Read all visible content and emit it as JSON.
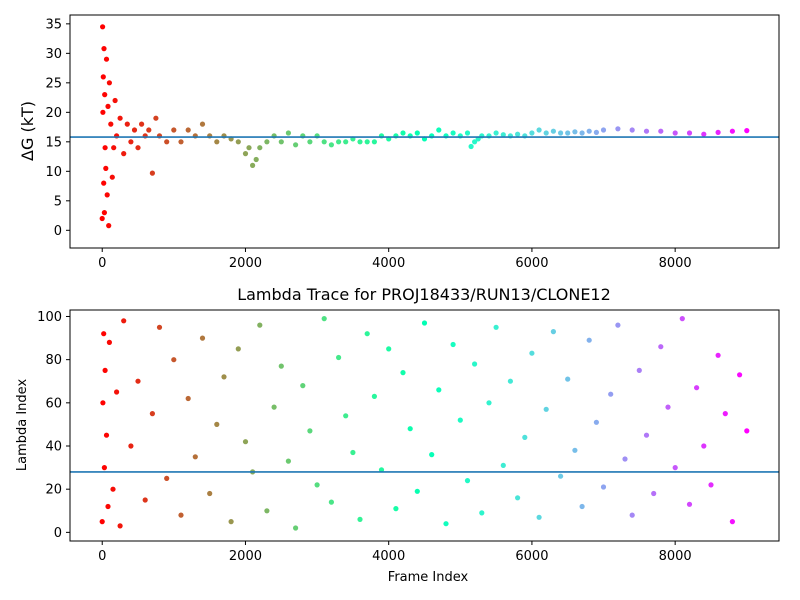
{
  "chart_data": [
    {
      "type": "scatter",
      "title": "",
      "xlabel": "",
      "ylabel": "ΔG (kT)",
      "xlim": [
        -450,
        9450
      ],
      "ylim": [
        -3,
        36.5
      ],
      "xticks": [
        0,
        2000,
        4000,
        6000,
        8000
      ],
      "yticks": [
        0,
        5,
        10,
        15,
        20,
        25,
        30,
        35
      ],
      "grid": false,
      "colormap": "rainbow (reversed along frame index)",
      "reference_line": {
        "y": 15.8,
        "color": "#1f77b4"
      },
      "series": [
        {
          "x": [
            0,
            5,
            10,
            15,
            20,
            25,
            30,
            35,
            40,
            50,
            60,
            70,
            80,
            90,
            100,
            120,
            140,
            160,
            180,
            200,
            250,
            300,
            350,
            400,
            450,
            500,
            550,
            600,
            650,
            700,
            750,
            800,
            900,
            1000,
            1100,
            1200,
            1300,
            1400,
            1500,
            1600,
            1700,
            1800,
            1900,
            2000,
            2050,
            2100,
            2150,
            2200,
            2300,
            2400,
            2500,
            2600,
            2700,
            2800,
            2900,
            3000,
            3100,
            3200,
            3300,
            3400,
            3500,
            3600,
            3700,
            3800,
            3900,
            4000,
            4100,
            4200,
            4300,
            4400,
            4500,
            4600,
            4700,
            4800,
            4900,
            5000,
            5100,
            5150,
            5200,
            5250,
            5300,
            5400,
            5500,
            5600,
            5700,
            5800,
            5900,
            6000,
            6100,
            6200,
            6300,
            6400,
            6500,
            6600,
            6700,
            6800,
            6900,
            7000,
            7200,
            7400,
            7600,
            7800,
            8000,
            8200,
            8400,
            8600,
            8800,
            9000
          ],
          "y": [
            2,
            34.5,
            20,
            26,
            8,
            30.8,
            3,
            23,
            14,
            10.5,
            29,
            6,
            21,
            0.8,
            25,
            18,
            9,
            14,
            22,
            16,
            19,
            13,
            18,
            15,
            17,
            14,
            18,
            16,
            17,
            9.7,
            19,
            16,
            15,
            17,
            15,
            17,
            16,
            18,
            16,
            15,
            16,
            15.5,
            15,
            13,
            14,
            11,
            12,
            14,
            15,
            16,
            15,
            16.5,
            14.5,
            16,
            15,
            16,
            15,
            14.5,
            15,
            15,
            15.5,
            15,
            15,
            15,
            16,
            15.5,
            16,
            16.5,
            16,
            16.5,
            15.5,
            16,
            17,
            16,
            16.5,
            16,
            16.5,
            14.2,
            15,
            15.5,
            16,
            16,
            16.5,
            16.2,
            16,
            16.3,
            16,
            16.5,
            17,
            16.5,
            16.8,
            16.5,
            16.5,
            16.7,
            16.5,
            16.8,
            16.6,
            17,
            17.2,
            17,
            16.8,
            16.8,
            16.5,
            16.5,
            16.3,
            16.6,
            16.8,
            16.9
          ]
        }
      ]
    },
    {
      "type": "scatter",
      "title": "Lambda Trace for PROJ18433/RUN13/CLONE12",
      "xlabel": "Frame Index",
      "ylabel": "Lambda Index",
      "xlim": [
        -450,
        9450
      ],
      "ylim": [
        -4,
        103
      ],
      "xticks": [
        0,
        2000,
        4000,
        6000,
        8000
      ],
      "yticks": [
        0,
        20,
        40,
        60,
        80,
        100
      ],
      "grid": false,
      "colormap": "rainbow (reversed along frame index)",
      "reference_line": {
        "y": 28,
        "color": "#1f77b4"
      },
      "series": [
        {
          "x": [
            0,
            10,
            20,
            30,
            40,
            60,
            80,
            100,
            150,
            200,
            250,
            300,
            400,
            500,
            600,
            700,
            800,
            900,
            1000,
            1100,
            1200,
            1300,
            1400,
            1500,
            1600,
            1700,
            1800,
            1900,
            2000,
            2100,
            2200,
            2300,
            2400,
            2500,
            2600,
            2700,
            2800,
            2900,
            3000,
            3100,
            3200,
            3300,
            3400,
            3500,
            3600,
            3700,
            3800,
            3900,
            4000,
            4100,
            4200,
            4300,
            4400,
            4500,
            4600,
            4700,
            4800,
            4900,
            5000,
            5100,
            5200,
            5300,
            5400,
            5500,
            5600,
            5700,
            5800,
            5900,
            6000,
            6100,
            6200,
            6300,
            6400,
            6500,
            6600,
            6700,
            6800,
            6900,
            7000,
            7100,
            7200,
            7300,
            7400,
            7500,
            7600,
            7700,
            7800,
            7900,
            8000,
            8100,
            8200,
            8300,
            8400,
            8500,
            8600,
            8700,
            8800,
            8900,
            9000
          ],
          "y": [
            5,
            60,
            92,
            30,
            75,
            45,
            12,
            88,
            20,
            65,
            3,
            98,
            40,
            70,
            15,
            55,
            95,
            25,
            80,
            8,
            62,
            35,
            90,
            18,
            50,
            72,
            5,
            85,
            42,
            28,
            96,
            10,
            58,
            77,
            33,
            2,
            68,
            47,
            22,
            99,
            14,
            81,
            54,
            37,
            6,
            92,
            63,
            29,
            85,
            11,
            74,
            48,
            19,
            97,
            36,
            66,
            4,
            87,
            52,
            24,
            78,
            9,
            60,
            95,
            31,
            70,
            16,
            44,
            83,
            7,
            57,
            93,
            26,
            71,
            38,
            12,
            89,
            51,
            21,
            64,
            96,
            34,
            8,
            75,
            45,
            18,
            86,
            58,
            30,
            99,
            13,
            67,
            40,
            22,
            82,
            55,
            5,
            73,
            47
          ]
        }
      ]
    }
  ]
}
